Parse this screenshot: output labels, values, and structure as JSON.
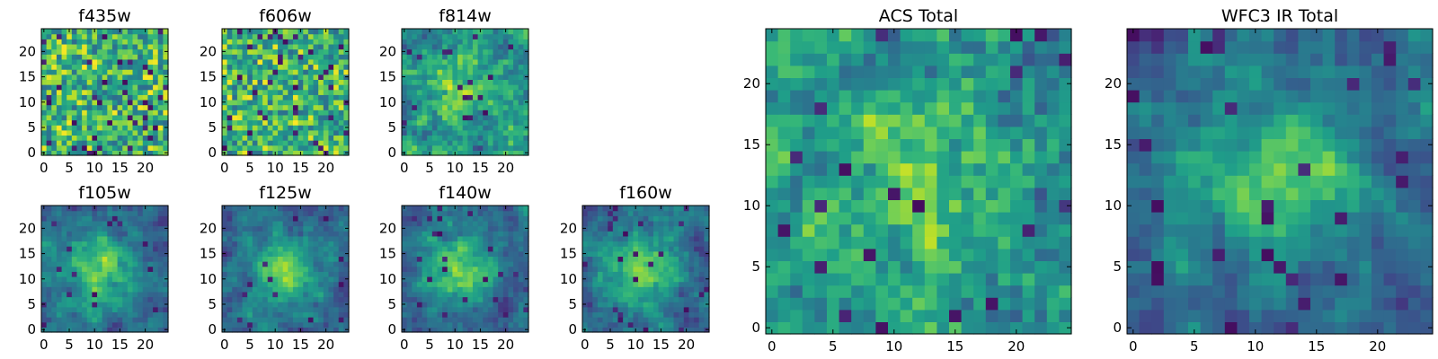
{
  "chart_data": [
    {
      "type": "heatmap",
      "title": "f435w",
      "shape": [
        25,
        25
      ],
      "xticks": [
        0,
        5,
        10,
        15,
        20
      ],
      "yticks": [
        0,
        5,
        10,
        15,
        20
      ],
      "xlim": [
        -0.5,
        24.5
      ],
      "ylim": [
        -0.5,
        24.5
      ],
      "colormap": "viridis",
      "pattern": "noise"
    },
    {
      "type": "heatmap",
      "title": "f606w",
      "shape": [
        25,
        25
      ],
      "xticks": [
        0,
        5,
        10,
        15,
        20
      ],
      "yticks": [
        0,
        5,
        10,
        15,
        20
      ],
      "xlim": [
        -0.5,
        24.5
      ],
      "ylim": [
        -0.5,
        24.5
      ],
      "colormap": "viridis",
      "pattern": "noise"
    },
    {
      "type": "heatmap",
      "title": "f814w",
      "shape": [
        25,
        25
      ],
      "xticks": [
        0,
        5,
        10,
        15,
        20
      ],
      "yticks": [
        0,
        5,
        10,
        15,
        20
      ],
      "xlim": [
        -0.5,
        24.5
      ],
      "ylim": [
        -0.5,
        24.5
      ],
      "colormap": "viridis",
      "pattern": "noise-with-faint-center"
    },
    {
      "type": "heatmap",
      "title": "f105w",
      "shape": [
        25,
        25
      ],
      "xticks": [
        0,
        5,
        10,
        15,
        20
      ],
      "yticks": [
        0,
        5,
        10,
        15,
        20
      ],
      "xlim": [
        -0.5,
        24.5
      ],
      "ylim": [
        -0.5,
        24.5
      ],
      "colormap": "viridis",
      "pattern": "central-source"
    },
    {
      "type": "heatmap",
      "title": "f125w",
      "shape": [
        25,
        25
      ],
      "xticks": [
        0,
        5,
        10,
        15,
        20
      ],
      "yticks": [
        0,
        5,
        10,
        15,
        20
      ],
      "xlim": [
        -0.5,
        24.5
      ],
      "ylim": [
        -0.5,
        24.5
      ],
      "colormap": "viridis",
      "pattern": "central-source"
    },
    {
      "type": "heatmap",
      "title": "f140w",
      "shape": [
        25,
        25
      ],
      "xticks": [
        0,
        5,
        10,
        15,
        20
      ],
      "yticks": [
        0,
        5,
        10,
        15,
        20
      ],
      "xlim": [
        -0.5,
        24.5
      ],
      "ylim": [
        -0.5,
        24.5
      ],
      "colormap": "viridis",
      "pattern": "central-source"
    },
    {
      "type": "heatmap",
      "title": "f160w",
      "shape": [
        25,
        25
      ],
      "xticks": [
        0,
        5,
        10,
        15,
        20
      ],
      "yticks": [
        0,
        5,
        10,
        15,
        20
      ],
      "xlim": [
        -0.5,
        24.5
      ],
      "ylim": [
        -0.5,
        24.5
      ],
      "colormap": "viridis",
      "pattern": "central-source"
    },
    {
      "type": "heatmap",
      "title": "ACS Total",
      "shape": [
        25,
        25
      ],
      "xticks": [
        0,
        5,
        10,
        15,
        20
      ],
      "yticks": [
        0,
        5,
        10,
        15,
        20
      ],
      "xlim": [
        -0.5,
        24.5
      ],
      "ylim": [
        -0.5,
        24.5
      ],
      "colormap": "viridis",
      "pattern": "noise-with-faint-center"
    },
    {
      "type": "heatmap",
      "title": "WFC3 IR Total",
      "shape": [
        25,
        25
      ],
      "xticks": [
        0,
        5,
        10,
        15,
        20
      ],
      "yticks": [
        0,
        5,
        10,
        15,
        20
      ],
      "xlim": [
        -0.5,
        24.5
      ],
      "ylim": [
        -0.5,
        24.5
      ],
      "colormap": "viridis",
      "pattern": "central-source"
    }
  ]
}
